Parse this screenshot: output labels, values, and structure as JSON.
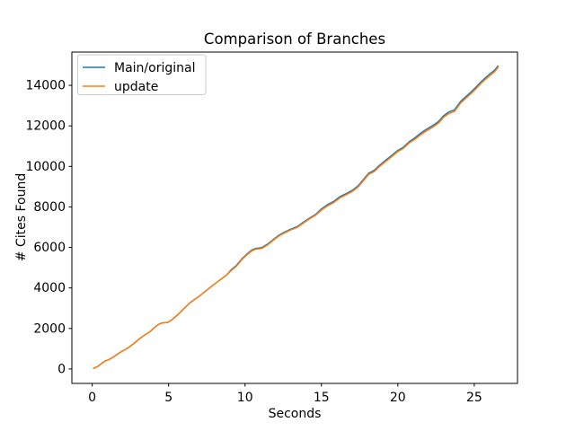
{
  "chart_data": {
    "type": "line",
    "title": "Comparison of Branches",
    "xlabel": "Seconds",
    "ylabel": "# Cites Found",
    "xlim": [
      -1.33,
      27.83
    ],
    "ylim": [
      -713,
      15643
    ],
    "xticks": [
      0,
      5,
      10,
      15,
      20,
      25
    ],
    "yticks": [
      0,
      2000,
      4000,
      6000,
      8000,
      10000,
      12000,
      14000
    ],
    "grid": false,
    "legend_position": "upper left",
    "background_color": "#ffffff",
    "spine_color": "#000000",
    "legend_border_color": "#cccccc",
    "series": [
      {
        "name": "Main/original",
        "color": "#1f77b4",
        "x": [
          0.1,
          0.35,
          0.6,
          0.85,
          1.05,
          1.3,
          1.6,
          1.9,
          2.15,
          2.45,
          2.8,
          3.1,
          3.45,
          3.75,
          4.0,
          4.3,
          4.55,
          4.95,
          5.2,
          5.6,
          6.0,
          6.35,
          6.7,
          7.1,
          7.5,
          7.9,
          8.25,
          8.55,
          8.8,
          9.1,
          9.45,
          9.8,
          10.15,
          10.45,
          10.7,
          11.1,
          11.5,
          11.9,
          12.25,
          12.6,
          13.0,
          13.4,
          13.8,
          14.2,
          14.6,
          15.0,
          15.4,
          15.8,
          16.2,
          16.6,
          17.0,
          17.4,
          17.8,
          18.1,
          18.45,
          18.8,
          19.2,
          19.6,
          20.0,
          20.35,
          20.75,
          21.1,
          21.5,
          21.9,
          22.3,
          22.65,
          23.0,
          23.35,
          23.7,
          24.1,
          24.45,
          24.8,
          25.1,
          25.45,
          25.8,
          26.1,
          26.35,
          26.55
        ],
        "y": [
          30,
          120,
          260,
          390,
          450,
          550,
          700,
          850,
          950,
          1100,
          1300,
          1500,
          1680,
          1820,
          2000,
          2180,
          2270,
          2300,
          2420,
          2680,
          2980,
          3230,
          3430,
          3650,
          3890,
          4130,
          4330,
          4500,
          4640,
          4900,
          5120,
          5440,
          5690,
          5870,
          5950,
          5990,
          6170,
          6420,
          6620,
          6760,
          6900,
          7020,
          7230,
          7440,
          7620,
          7900,
          8110,
          8270,
          8500,
          8650,
          8810,
          9040,
          9400,
          9670,
          9800,
          10050,
          10300,
          10540,
          10790,
          10940,
          11220,
          11400,
          11640,
          11840,
          12020,
          12210,
          12500,
          12690,
          12790,
          13200,
          13440,
          13680,
          13900,
          14180,
          14420,
          14610,
          14760,
          14950
        ]
      },
      {
        "name": "update",
        "color": "#ff7f0e",
        "x": [
          0.1,
          0.35,
          0.6,
          0.85,
          1.05,
          1.3,
          1.6,
          1.9,
          2.15,
          2.45,
          2.8,
          3.1,
          3.45,
          3.75,
          4.0,
          4.3,
          4.55,
          4.95,
          5.2,
          5.6,
          6.0,
          6.35,
          6.7,
          7.1,
          7.5,
          7.9,
          8.25,
          8.55,
          8.8,
          9.1,
          9.45,
          9.8,
          10.15,
          10.45,
          10.7,
          11.1,
          11.5,
          11.9,
          12.25,
          12.6,
          13.0,
          13.4,
          13.8,
          14.2,
          14.6,
          15.0,
          15.4,
          15.8,
          16.2,
          16.6,
          17.0,
          17.4,
          17.8,
          18.1,
          18.45,
          18.8,
          19.2,
          19.6,
          20.0,
          20.35,
          20.75,
          21.1,
          21.5,
          21.9,
          22.3,
          22.65,
          23.0,
          23.35,
          23.7,
          24.1,
          24.45,
          24.8,
          25.1,
          25.45,
          25.8,
          26.1,
          26.35,
          26.55
        ],
        "y": [
          30,
          120,
          260,
          390,
          450,
          550,
          700,
          850,
          950,
          1100,
          1300,
          1500,
          1680,
          1820,
          2000,
          2180,
          2270,
          2300,
          2420,
          2680,
          2980,
          3230,
          3430,
          3650,
          3890,
          4130,
          4330,
          4500,
          4640,
          4860,
          5080,
          5400,
          5650,
          5830,
          5910,
          5950,
          6130,
          6380,
          6580,
          6720,
          6860,
          6980,
          7190,
          7400,
          7580,
          7840,
          8050,
          8210,
          8440,
          8590,
          8750,
          8980,
          9340,
          9610,
          9740,
          9990,
          10240,
          10480,
          10730,
          10880,
          11160,
          11320,
          11560,
          11760,
          11940,
          12130,
          12420,
          12610,
          12710,
          13120,
          13360,
          13600,
          13820,
          14100,
          14340,
          14530,
          14680,
          14870
        ]
      }
    ]
  }
}
